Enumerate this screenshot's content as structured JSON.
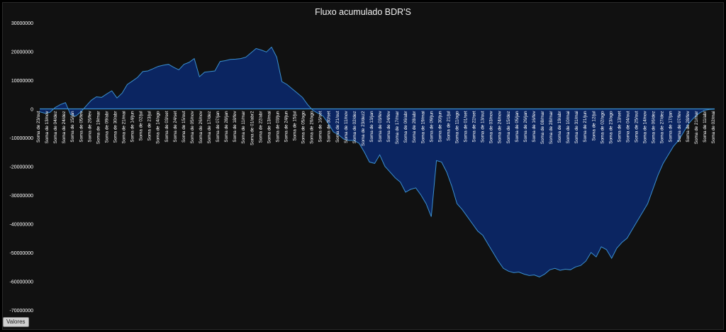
{
  "values_button_label": "Valores",
  "colors": {
    "background": "#111111",
    "area_fill": "#0b2561",
    "line": "#3a8fd0",
    "text": "#ffffff"
  },
  "chart_data": {
    "type": "area",
    "title": "Fluxo acumulado BDR'S",
    "xlabel": "",
    "ylabel": "",
    "ylim": [
      -70000000,
      30000000
    ],
    "yticks": [
      30000000,
      20000000,
      10000000,
      0,
      -10000000,
      -20000000,
      -30000000,
      -40000000,
      -50000000,
      -60000000,
      -70000000
    ],
    "grid": false,
    "x_tick_labels": [
      "Soma de 23/out",
      "Soma de 13/nov",
      "Soma de 04/dez",
      "Soma de 24/dez",
      "Soma de 15/jan",
      "Soma de 05/fev",
      "Soma de 26/fev",
      "Soma de 19/mar",
      "Soma de 09/abr",
      "Soma de 30/abr",
      "Soma de 21/mai",
      "Soma de 14/jun",
      "Soma de 02/jul",
      "Soma de 23/jul",
      "Soma de 14/ago",
      "Soma de 03/set",
      "Soma de 24/set",
      "Soma de 15/out",
      "Soma de 05/nov",
      "Soma de 26/nov",
      "Soma de 17/dez",
      "Soma de 07/jan",
      "Soma de 28/jan",
      "Soma de 18/fev",
      "Soma de 11/mar",
      "Soma de 01/abr2",
      "Soma de 22/abr",
      "Soma de 13/mai",
      "Soma de 03/jun",
      "Soma de 24/jun",
      "Soma de 15/jul",
      "Soma de 05/ago",
      "Soma de 26/ago",
      "Soma de 16/set",
      "Soma de 30/set",
      "Soma de 21/out",
      "Soma de 11/nov",
      "Soma de 02/dez",
      "Soma de 23/dez2",
      "Soma de 13/jan",
      "Soma de 03/fev",
      "Soma de 24/fev",
      "Soma de 17/mar",
      "Soma de 06/abr",
      "Soma de 28/abr",
      "Soma de 19/mai",
      "Soma de 09/jun",
      "Soma de 30/jun",
      "Soma de 21/jul",
      "Soma de 11/ago",
      "Soma de 01/set",
      "Soma de 22/set",
      "Soma de 13/out",
      "Soma de 03/nov",
      "Soma de 24/nov",
      "Soma de 15/dez",
      "Soma de 05/jan",
      "Soma de 26/jan",
      "Soma de 16/fev",
      "Soma de 08/mar",
      "Soma de 28/mar",
      "Soma de 19/abr",
      "Soma de 10/mai",
      "Soma de 31/mai",
      "Soma de 21/jun",
      "Soma de 12/jul",
      "Soma de 02/ago",
      "Soma de 23/ago",
      "Soma de 13/set",
      "Soma de 04/out",
      "Soma de 25/out",
      "Soma de 14/nov",
      "Soma de 06/dez",
      "Soma de 27/dez",
      "Soma de 17/jan",
      "Soma de 07/fev",
      "Soma de 28/fev",
      "Soma de 21/mar",
      "Soma de 11/abr",
      "Soma de 02/mai"
    ],
    "values": [
      -1000000,
      -1500000,
      -1200000,
      500000,
      1500000,
      2200000,
      -2000000,
      -2500000,
      -1000000,
      1000000,
      3000000,
      4200000,
      4000000,
      5200000,
      6300000,
      3800000,
      5500000,
      8500000,
      9700000,
      11000000,
      13000000,
      13200000,
      14000000,
      14800000,
      15200000,
      15500000,
      14500000,
      13600000,
      15500000,
      16200000,
      17500000,
      11200000,
      12800000,
      13000000,
      13200000,
      16500000,
      16800000,
      17200000,
      17300000,
      17500000,
      18000000,
      19500000,
      21000000,
      20500000,
      19800000,
      21500000,
      18000000,
      9500000,
      8500000,
      7000000,
      5500000,
      4000000,
      1500000,
      -500000,
      -1500000,
      -2500000,
      -5000000,
      -8000000,
      -9000000,
      -10500000,
      -11000000,
      -11000000,
      -12000000,
      -15000000,
      -18500000,
      -19000000,
      -16000000,
      -20000000,
      -22000000,
      -24000000,
      -25500000,
      -29000000,
      -28000000,
      -27500000,
      -30000000,
      -33000000,
      -37500000,
      -18000000,
      -18500000,
      -22000000,
      -27000000,
      -33000000,
      -35000000,
      -37500000,
      -40000000,
      -42500000,
      -44000000,
      -47000000,
      -50000000,
      -53000000,
      -55500000,
      -56500000,
      -57000000,
      -56800000,
      -57500000,
      -58000000,
      -57800000,
      -58500000,
      -57500000,
      -56000000,
      -55500000,
      -56200000,
      -55800000,
      -56000000,
      -55000000,
      -54500000,
      -53000000,
      -50000000,
      -51500000,
      -48000000,
      -49000000,
      -52000000,
      -48500000,
      -46500000,
      -45000000,
      -42000000,
      -39000000,
      -36000000,
      -33000000,
      -28000000,
      -23000000,
      -19000000,
      -16000000,
      -13000000,
      -11000000,
      -8000000,
      -5000000,
      -3000000,
      -1500000,
      -500000,
      -200000,
      -100000
    ]
  }
}
